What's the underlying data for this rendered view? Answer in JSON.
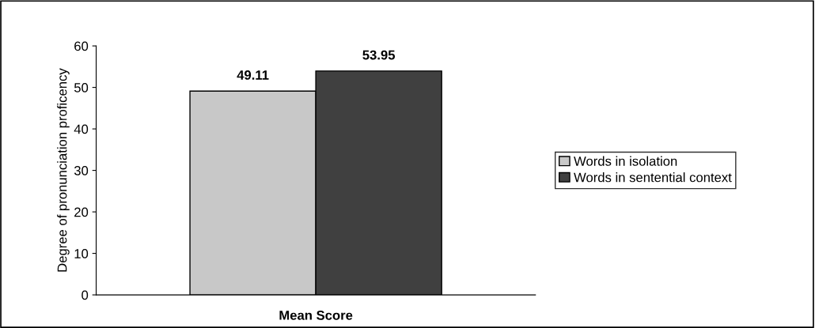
{
  "chart_data": {
    "type": "bar",
    "ylabel": "Degree of pronunciation proficency",
    "categories": [
      "Mean Score"
    ],
    "series": [
      {
        "name": "Words in isolation",
        "color": "#c8c8c8",
        "values": [
          49.11
        ]
      },
      {
        "name": "Words in sentential context",
        "color": "#404040",
        "values": [
          53.95
        ]
      }
    ],
    "ylim": [
      0,
      60
    ],
    "yticks": [
      0,
      10,
      20,
      30,
      40,
      50,
      60
    ],
    "data_labels": true,
    "legend": "right",
    "grid": false
  }
}
